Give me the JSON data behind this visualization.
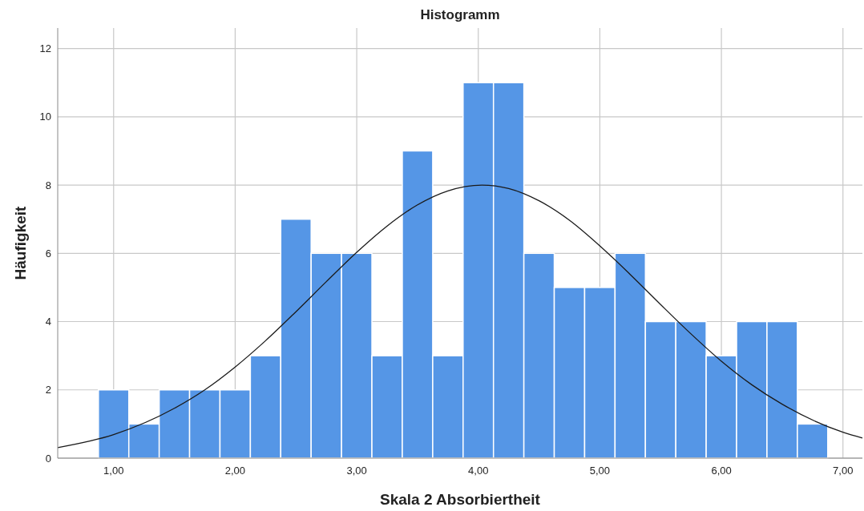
{
  "chart_data": {
    "type": "histogram",
    "title": "Histogramm",
    "xlabel": "Skala 2 Absorbiertheit",
    "ylabel": "Häufigkeit",
    "bins": [
      0.875,
      1.125,
      1.375,
      1.625,
      1.875,
      2.125,
      2.375,
      2.625,
      2.875,
      3.125,
      3.375,
      3.625,
      3.875,
      4.125,
      4.375,
      4.625,
      4.875,
      5.125,
      5.375,
      5.625,
      5.875,
      6.125,
      6.375,
      6.625,
      6.875
    ],
    "series": [
      {
        "color": "#5596e6",
        "values": [
          2,
          1,
          2,
          2,
          2,
          3,
          7,
          6,
          6,
          3,
          9,
          3,
          11,
          11,
          6,
          5,
          5,
          6,
          4,
          4,
          3,
          4,
          4,
          1
        ]
      },
      {
        "type": "line",
        "color": "#1a1a1a",
        "x": [
          0.54,
          1.0,
          1.5,
          1.75,
          2.0,
          2.25,
          2.5,
          2.75,
          3.0,
          3.25,
          3.5,
          3.75,
          4.03,
          4.25,
          4.5,
          4.75,
          5.0,
          5.25,
          5.5,
          5.75,
          6.0,
          6.25,
          6.5,
          7.0,
          7.16
        ],
        "values": [
          0.31,
          0.69,
          1.46,
          2.0,
          2.67,
          3.44,
          4.29,
          5.17,
          6.03,
          6.8,
          7.42,
          7.83,
          8,
          7.9,
          7.54,
          6.97,
          6.22,
          5.38,
          4.5,
          3.64,
          2.84,
          2.15,
          1.58,
          0.76,
          0.59
        ]
      }
    ],
    "xlim": [
      0.54,
      7.16
    ],
    "ylim": [
      0,
      12.6
    ],
    "xticks": [
      {
        "value": 1,
        "label": "1,00"
      },
      {
        "value": 2,
        "label": "2,00"
      },
      {
        "value": 3,
        "label": "3,00"
      },
      {
        "value": 4,
        "label": "4,00"
      },
      {
        "value": 5,
        "label": "5,00"
      },
      {
        "value": 6,
        "label": "6,00"
      },
      {
        "value": 7,
        "label": "7,00"
      }
    ],
    "yticks": [
      0,
      2,
      4,
      6,
      8,
      10,
      12
    ],
    "grid": true,
    "marker": "none",
    "line_style": "solid"
  }
}
